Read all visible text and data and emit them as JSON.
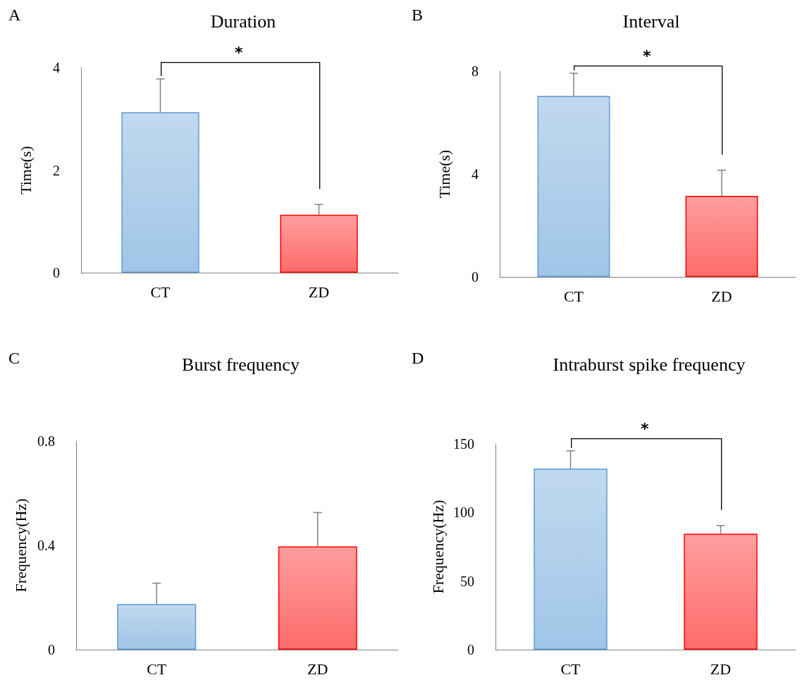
{
  "chart_data": [
    {
      "type": "bar",
      "title": "Duration",
      "ylabel": "Time(s)",
      "categories": [
        "CT",
        "ZD"
      ],
      "values": [
        3.13,
        1.13
      ],
      "errors": [
        0.65,
        0.2
      ],
      "colors": [
        "#5b9bd5",
        "#ff0000"
      ],
      "ylim": [
        0,
        4
      ],
      "yticks": [
        0,
        2,
        4
      ],
      "grid": false,
      "annotations": [
        "A",
        "*"
      ]
    },
    {
      "type": "bar",
      "title": "Interval",
      "ylabel": "Time(s)",
      "categories": [
        "CT",
        "ZD"
      ],
      "values": [
        7.04,
        3.15
      ],
      "errors": [
        0.88,
        1.0
      ],
      "colors": [
        "#5b9bd5",
        "#ff0000"
      ],
      "ylim": [
        0,
        8
      ],
      "yticks": [
        0,
        4,
        8
      ],
      "grid": false,
      "annotations": [
        "B",
        "*"
      ]
    },
    {
      "type": "bar",
      "title": "Burst frequency",
      "ylabel": "Frequency(Hz)",
      "categories": [
        "CT",
        "ZD"
      ],
      "values": [
        0.175,
        0.396
      ],
      "errors": [
        0.08,
        0.13
      ],
      "colors": [
        "#5b9bd5",
        "#ff0000"
      ],
      "ylim": [
        0,
        0.8
      ],
      "yticks": [
        0,
        0.4,
        0.8
      ],
      "grid": false,
      "annotations": [
        "C"
      ]
    },
    {
      "type": "bar",
      "title": "Intraburst spike frequency",
      "ylabel": "Frequency(Hz)",
      "categories": [
        "CT",
        "ZD"
      ],
      "values": [
        132,
        84.5
      ],
      "errors": [
        13,
        6
      ],
      "colors": [
        "#5b9bd5",
        "#ff0000"
      ],
      "ylim": [
        0,
        150
      ],
      "yticks": [
        0,
        50,
        100,
        150
      ],
      "grid": false,
      "annotations": [
        "D",
        "*"
      ]
    }
  ]
}
